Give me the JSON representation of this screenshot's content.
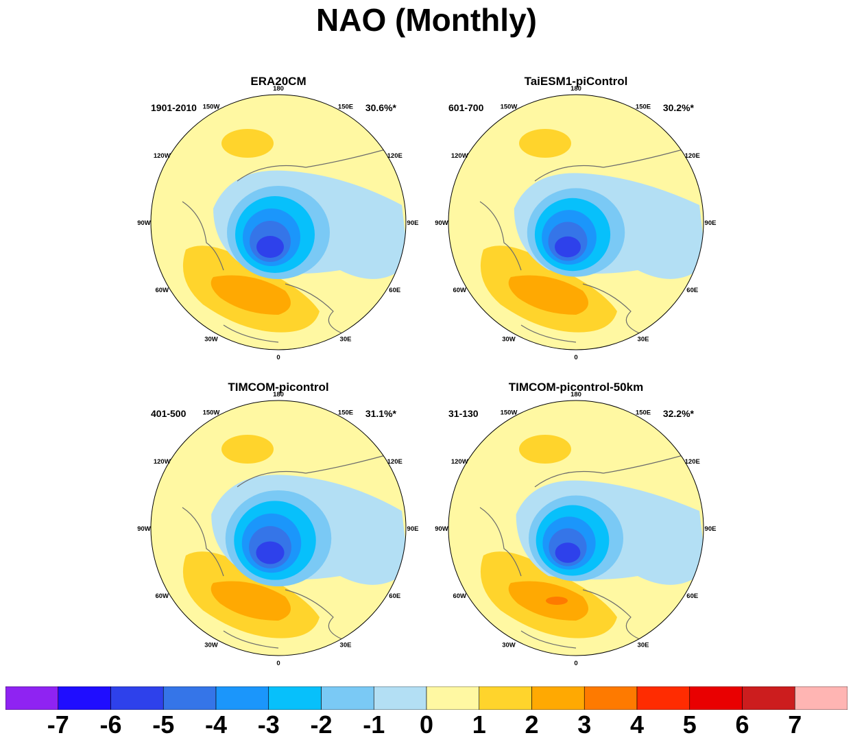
{
  "title": "NAO (Monthly)",
  "panels": [
    {
      "title": "ERA20CM",
      "period": "1901-2010",
      "variance": "30.6%*",
      "variant": 0
    },
    {
      "title": "TaiESM1-piControl",
      "period": "601-700",
      "variance": "30.2%*",
      "variant": 1
    },
    {
      "title": "TIMCOM-picontrol",
      "period": "401-500",
      "variance": "31.1%*",
      "variant": 2
    },
    {
      "title": "TIMCOM-picontrol-50km",
      "period": "31-130",
      "variance": "32.2%*",
      "variant": 3
    }
  ],
  "longitude_labels": [
    "180",
    "150E",
    "120E",
    "90E",
    "60E",
    "30E",
    "0",
    "30W",
    "60W",
    "90W",
    "120W",
    "150W"
  ],
  "colorbar": {
    "colors": [
      "#8f23f2",
      "#1f0dff",
      "#2e41eb",
      "#3575e8",
      "#1b96fb",
      "#07c0fb",
      "#7ac9f5",
      "#b3dff4",
      "#fff8a2",
      "#ffd42c",
      "#ffa902",
      "#fe7a00",
      "#ff2c01",
      "#e90001",
      "#cc1d1e",
      "#ffb5b3"
    ],
    "labels": [
      "-7",
      "-6",
      "-5",
      "-4",
      "-3",
      "-2",
      "-1",
      "0",
      "1",
      "2",
      "3",
      "4",
      "5",
      "6",
      "7"
    ]
  }
}
